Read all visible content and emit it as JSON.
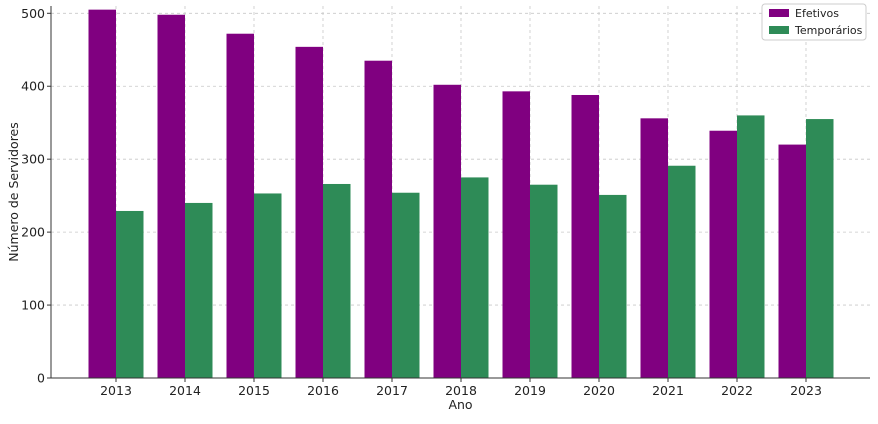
{
  "chart_data": {
    "type": "bar",
    "title": "",
    "xlabel": "Ano",
    "ylabel": "Número de Servidores",
    "categories": [
      "2013",
      "2014",
      "2015",
      "2016",
      "2017",
      "2018",
      "2019",
      "2020",
      "2021",
      "2022",
      "2023"
    ],
    "series": [
      {
        "name": "Efetivos",
        "color": "#800080",
        "values": [
          505,
          498,
          472,
          454,
          435,
          402,
          393,
          388,
          356,
          339,
          320
        ]
      },
      {
        "name": "Temporários",
        "color": "#2e8b57",
        "values": [
          229,
          240,
          253,
          266,
          254,
          275,
          265,
          251,
          291,
          360,
          355
        ]
      }
    ],
    "ylim": [
      0,
      510
    ],
    "yticks": [
      0,
      100,
      200,
      300,
      400,
      500
    ],
    "grid": true,
    "legend_position": "top-right"
  }
}
